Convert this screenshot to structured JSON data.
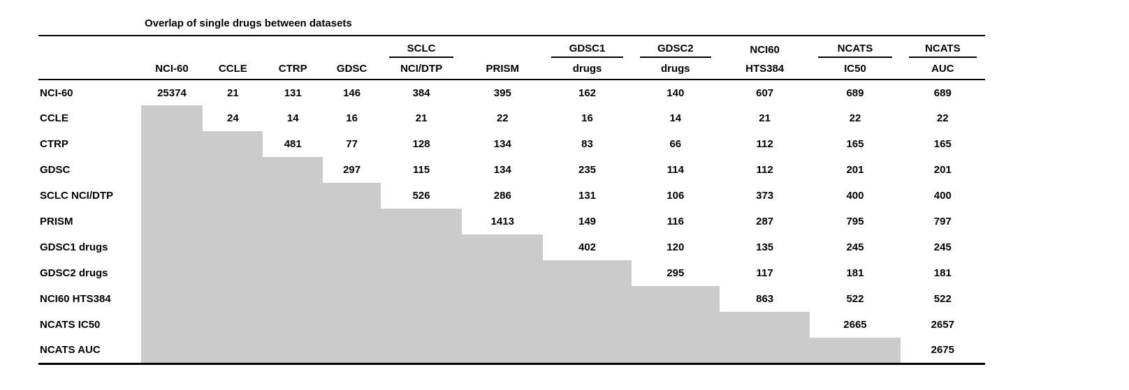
{
  "title": "Overlap of single drugs between datasets",
  "colors": {
    "shaded_cell": "#cbcbcb",
    "rule": "#000000",
    "text": "#000000",
    "background": "#ffffff"
  },
  "table": {
    "column_headers": [
      {
        "top": "",
        "bottom": "NCI-60",
        "spanner_rule": false
      },
      {
        "top": "",
        "bottom": "CCLE",
        "spanner_rule": false
      },
      {
        "top": "",
        "bottom": "CTRP",
        "spanner_rule": false
      },
      {
        "top": "",
        "bottom": "GDSC",
        "spanner_rule": false
      },
      {
        "top": "SCLC",
        "bottom": "NCI/DTP",
        "spanner_rule": true
      },
      {
        "top": "",
        "bottom": "PRISM",
        "spanner_rule": false
      },
      {
        "top": "GDSC1",
        "bottom": "drugs",
        "spanner_rule": true
      },
      {
        "top": "GDSC2",
        "bottom": "drugs",
        "spanner_rule": true
      },
      {
        "top": "NCI60",
        "bottom": "HTS384",
        "spanner_rule": false
      },
      {
        "top": "NCATS",
        "bottom": "IC50",
        "spanner_rule": true
      },
      {
        "top": "NCATS",
        "bottom": "AUC",
        "spanner_rule": true
      }
    ],
    "rows": [
      {
        "label": "NCI-60",
        "values": [
          "25374",
          "21",
          "131",
          "146",
          "384",
          "395",
          "162",
          "140",
          "607",
          "689",
          "689"
        ]
      },
      {
        "label": "CCLE",
        "values": [
          null,
          "24",
          "14",
          "16",
          "21",
          "22",
          "16",
          "14",
          "21",
          "22",
          "22"
        ]
      },
      {
        "label": "CTRP",
        "values": [
          null,
          null,
          "481",
          "77",
          "128",
          "134",
          "83",
          "66",
          "112",
          "165",
          "165"
        ]
      },
      {
        "label": "GDSC",
        "values": [
          null,
          null,
          null,
          "297",
          "115",
          "134",
          "235",
          "114",
          "112",
          "201",
          "201"
        ]
      },
      {
        "label": "SCLC NCI/DTP",
        "values": [
          null,
          null,
          null,
          null,
          "526",
          "286",
          "131",
          "106",
          "373",
          "400",
          "400"
        ]
      },
      {
        "label": "PRISM",
        "values": [
          null,
          null,
          null,
          null,
          null,
          "1413",
          "149",
          "116",
          "287",
          "795",
          "797"
        ]
      },
      {
        "label": "GDSC1 drugs",
        "values": [
          null,
          null,
          null,
          null,
          null,
          null,
          "402",
          "120",
          "135",
          "245",
          "245"
        ]
      },
      {
        "label": "GDSC2 drugs",
        "values": [
          null,
          null,
          null,
          null,
          null,
          null,
          null,
          "295",
          "117",
          "181",
          "181"
        ]
      },
      {
        "label": "NCI60 HTS384",
        "values": [
          null,
          null,
          null,
          null,
          null,
          null,
          null,
          null,
          "863",
          "522",
          "522"
        ]
      },
      {
        "label": "NCATS IC50",
        "values": [
          null,
          null,
          null,
          null,
          null,
          null,
          null,
          null,
          null,
          "2665",
          "2657"
        ]
      },
      {
        "label": "NCATS AUC",
        "values": [
          null,
          null,
          null,
          null,
          null,
          null,
          null,
          null,
          null,
          null,
          "2675"
        ]
      }
    ]
  }
}
